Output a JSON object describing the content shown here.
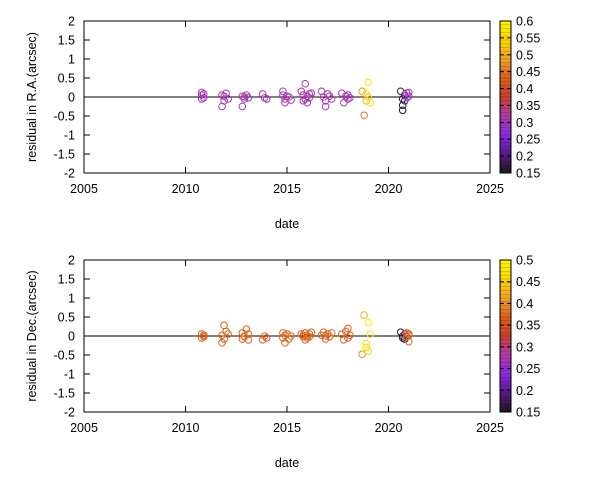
{
  "chart_data": [
    {
      "type": "scatter",
      "title": "",
      "xlabel": "date",
      "ylabel": "residual in R.A.(arcsec)",
      "xlim": [
        2005,
        2025
      ],
      "ylim": [
        -2,
        2
      ],
      "xticks": [
        "2005",
        "2010",
        "2015",
        "2020",
        "2025"
      ],
      "yticks": [
        "2",
        "1.5",
        "1",
        "0.5",
        "0",
        "-0.5",
        "-1",
        "-1.5",
        "-2"
      ],
      "grid": false,
      "marker": "open-circle",
      "zero_line": true,
      "colorbar": {
        "min": 0.15,
        "max": 0.6,
        "ticks": [
          "0.6",
          "0.55",
          "0.5",
          "0.45",
          "0.4",
          "0.35",
          "0.3",
          "0.25",
          "0.2",
          "0.15"
        ],
        "colormap": [
          "#1a1a1a",
          "#5a1a8a",
          "#8a2be2",
          "#b03aa8",
          "#c8402f",
          "#e0601a",
          "#f2a22a",
          "#ffd800",
          "#fff200"
        ]
      },
      "points": [
        {
          "x": 2010.8,
          "y": 0.05,
          "c": 0.31
        },
        {
          "x": 2010.8,
          "y": 0.12,
          "c": 0.31
        },
        {
          "x": 2010.9,
          "y": -0.02,
          "c": 0.31
        },
        {
          "x": 2010.8,
          "y": -0.05,
          "c": 0.3
        },
        {
          "x": 2010.9,
          "y": 0.08,
          "c": 0.31
        },
        {
          "x": 2011.8,
          "y": -0.25,
          "c": 0.31
        },
        {
          "x": 2011.8,
          "y": 0.05,
          "c": 0.31
        },
        {
          "x": 2011.9,
          "y": -0.1,
          "c": 0.31
        },
        {
          "x": 2012.0,
          "y": 0.1,
          "c": 0.32
        },
        {
          "x": 2011.9,
          "y": 0.02,
          "c": 0.3
        },
        {
          "x": 2012.1,
          "y": -0.05,
          "c": 0.31
        },
        {
          "x": 2012.8,
          "y": -0.25,
          "c": 0.31
        },
        {
          "x": 2012.8,
          "y": 0.02,
          "c": 0.31
        },
        {
          "x": 2012.9,
          "y": -0.05,
          "c": 0.31
        },
        {
          "x": 2013.0,
          "y": 0.05,
          "c": 0.31
        },
        {
          "x": 2013.1,
          "y": -0.02,
          "c": 0.3
        },
        {
          "x": 2012.9,
          "y": 0.0,
          "c": 0.32
        },
        {
          "x": 2013.8,
          "y": 0.08,
          "c": 0.31
        },
        {
          "x": 2013.9,
          "y": -0.02,
          "c": 0.31
        },
        {
          "x": 2014.0,
          "y": -0.05,
          "c": 0.3
        },
        {
          "x": 2014.8,
          "y": 0.15,
          "c": 0.31
        },
        {
          "x": 2014.8,
          "y": 0.05,
          "c": 0.31
        },
        {
          "x": 2014.9,
          "y": -0.05,
          "c": 0.31
        },
        {
          "x": 2014.9,
          "y": -0.15,
          "c": 0.31
        },
        {
          "x": 2015.0,
          "y": 0.02,
          "c": 0.3
        },
        {
          "x": 2015.1,
          "y": 0.0,
          "c": 0.31
        },
        {
          "x": 2015.2,
          "y": -0.08,
          "c": 0.32
        },
        {
          "x": 2015.7,
          "y": 0.15,
          "c": 0.31
        },
        {
          "x": 2015.8,
          "y": 0.05,
          "c": 0.31
        },
        {
          "x": 2015.8,
          "y": -0.1,
          "c": 0.31
        },
        {
          "x": 2015.9,
          "y": 0.35,
          "c": 0.31
        },
        {
          "x": 2015.9,
          "y": -0.05,
          "c": 0.3
        },
        {
          "x": 2016.0,
          "y": 0.02,
          "c": 0.31
        },
        {
          "x": 2016.0,
          "y": -0.15,
          "c": 0.31
        },
        {
          "x": 2016.1,
          "y": 0.08,
          "c": 0.32
        },
        {
          "x": 2016.1,
          "y": -0.02,
          "c": 0.31
        },
        {
          "x": 2016.2,
          "y": 0.1,
          "c": 0.31
        },
        {
          "x": 2016.7,
          "y": 0.15,
          "c": 0.31
        },
        {
          "x": 2016.8,
          "y": 0.0,
          "c": 0.31
        },
        {
          "x": 2016.9,
          "y": -0.1,
          "c": 0.31
        },
        {
          "x": 2016.9,
          "y": -0.25,
          "c": 0.31
        },
        {
          "x": 2017.0,
          "y": 0.08,
          "c": 0.3
        },
        {
          "x": 2017.1,
          "y": 0.02,
          "c": 0.31
        },
        {
          "x": 2017.2,
          "y": -0.05,
          "c": 0.32
        },
        {
          "x": 2017.7,
          "y": 0.1,
          "c": 0.31
        },
        {
          "x": 2017.8,
          "y": -0.15,
          "c": 0.31
        },
        {
          "x": 2017.9,
          "y": 0.02,
          "c": 0.31
        },
        {
          "x": 2018.0,
          "y": 0.05,
          "c": 0.3
        },
        {
          "x": 2018.0,
          "y": -0.05,
          "c": 0.32
        },
        {
          "x": 2018.1,
          "y": -0.02,
          "c": 0.31
        },
        {
          "x": 2018.7,
          "y": 0.15,
          "c": 0.48
        },
        {
          "x": 2018.8,
          "y": -0.48,
          "c": 0.45
        },
        {
          "x": 2018.9,
          "y": 0.08,
          "c": 0.55
        },
        {
          "x": 2018.9,
          "y": -0.1,
          "c": 0.5
        },
        {
          "x": 2019.0,
          "y": 0.38,
          "c": 0.58
        },
        {
          "x": 2019.0,
          "y": 0.0,
          "c": 0.52
        },
        {
          "x": 2019.1,
          "y": -0.15,
          "c": 0.57
        },
        {
          "x": 2020.6,
          "y": 0.15,
          "c": 0.18
        },
        {
          "x": 2020.7,
          "y": -0.05,
          "c": 0.16
        },
        {
          "x": 2020.7,
          "y": -0.22,
          "c": 0.16
        },
        {
          "x": 2020.7,
          "y": -0.35,
          "c": 0.15
        },
        {
          "x": 2020.8,
          "y": 0.05,
          "c": 0.2
        },
        {
          "x": 2020.8,
          "y": -0.1,
          "c": 0.18
        },
        {
          "x": 2020.9,
          "y": 0.1,
          "c": 0.3
        },
        {
          "x": 2020.9,
          "y": -0.02,
          "c": 0.31
        },
        {
          "x": 2021.0,
          "y": 0.12,
          "c": 0.31
        },
        {
          "x": 2021.0,
          "y": 0.02,
          "c": 0.3
        }
      ]
    },
    {
      "type": "scatter",
      "title": "",
      "xlabel": "date",
      "ylabel": "residual in Dec.(arcsec)",
      "xlim": [
        2005,
        2025
      ],
      "ylim": [
        -2,
        2
      ],
      "xticks": [
        "2005",
        "2010",
        "2015",
        "2020",
        "2025"
      ],
      "yticks": [
        "2",
        "1.5",
        "1",
        "0.5",
        "0",
        "-0.5",
        "-1",
        "-1.5",
        "-2"
      ],
      "grid": false,
      "marker": "open-circle",
      "zero_line": true,
      "colorbar": {
        "min": 0.15,
        "max": 0.5,
        "ticks": [
          "0.5",
          "0.45",
          "0.4",
          "0.35",
          "0.3",
          "0.25",
          "0.2",
          "0.15"
        ],
        "colormap": [
          "#1a1a1a",
          "#5a1a8a",
          "#8a2be2",
          "#b03aa8",
          "#c8402f",
          "#e0601a",
          "#f2a22a",
          "#ffd800",
          "#fff200"
        ]
      },
      "points": [
        {
          "x": 2010.8,
          "y": 0.05,
          "c": 0.37
        },
        {
          "x": 2010.8,
          "y": -0.05,
          "c": 0.37
        },
        {
          "x": 2010.9,
          "y": 0.02,
          "c": 0.36
        },
        {
          "x": 2010.9,
          "y": -0.02,
          "c": 0.37
        },
        {
          "x": 2011.8,
          "y": -0.18,
          "c": 0.37
        },
        {
          "x": 2011.8,
          "y": 0.02,
          "c": 0.37
        },
        {
          "x": 2011.9,
          "y": 0.28,
          "c": 0.37
        },
        {
          "x": 2011.9,
          "y": -0.08,
          "c": 0.36
        },
        {
          "x": 2012.0,
          "y": 0.12,
          "c": 0.37
        },
        {
          "x": 2012.1,
          "y": 0.05,
          "c": 0.38
        },
        {
          "x": 2012.8,
          "y": -0.08,
          "c": 0.37
        },
        {
          "x": 2012.8,
          "y": 0.08,
          "c": 0.37
        },
        {
          "x": 2012.9,
          "y": -0.02,
          "c": 0.37
        },
        {
          "x": 2013.0,
          "y": 0.18,
          "c": 0.36
        },
        {
          "x": 2013.1,
          "y": 0.05,
          "c": 0.37
        },
        {
          "x": 2013.1,
          "y": -0.1,
          "c": 0.37
        },
        {
          "x": 2012.9,
          "y": 0.0,
          "c": 0.38
        },
        {
          "x": 2013.8,
          "y": -0.1,
          "c": 0.37
        },
        {
          "x": 2013.9,
          "y": 0.0,
          "c": 0.37
        },
        {
          "x": 2014.0,
          "y": -0.05,
          "c": 0.36
        },
        {
          "x": 2014.8,
          "y": 0.08,
          "c": 0.37
        },
        {
          "x": 2014.8,
          "y": -0.05,
          "c": 0.37
        },
        {
          "x": 2014.9,
          "y": 0.02,
          "c": 0.37
        },
        {
          "x": 2014.9,
          "y": -0.18,
          "c": 0.37
        },
        {
          "x": 2015.0,
          "y": 0.05,
          "c": 0.36
        },
        {
          "x": 2015.1,
          "y": -0.08,
          "c": 0.37
        },
        {
          "x": 2015.2,
          "y": 0.0,
          "c": 0.38
        },
        {
          "x": 2015.7,
          "y": 0.05,
          "c": 0.37
        },
        {
          "x": 2015.8,
          "y": -0.02,
          "c": 0.37
        },
        {
          "x": 2015.8,
          "y": 0.02,
          "c": 0.37
        },
        {
          "x": 2015.9,
          "y": -0.1,
          "c": 0.37
        },
        {
          "x": 2015.9,
          "y": 0.08,
          "c": 0.36
        },
        {
          "x": 2016.0,
          "y": 0.0,
          "c": 0.37
        },
        {
          "x": 2016.0,
          "y": -0.05,
          "c": 0.37
        },
        {
          "x": 2016.1,
          "y": 0.05,
          "c": 0.38
        },
        {
          "x": 2016.1,
          "y": -0.02,
          "c": 0.37
        },
        {
          "x": 2016.2,
          "y": 0.1,
          "c": 0.37
        },
        {
          "x": 2016.7,
          "y": 0.02,
          "c": 0.37
        },
        {
          "x": 2016.8,
          "y": 0.1,
          "c": 0.37
        },
        {
          "x": 2016.9,
          "y": -0.08,
          "c": 0.37
        },
        {
          "x": 2016.9,
          "y": 0.0,
          "c": 0.37
        },
        {
          "x": 2017.0,
          "y": 0.05,
          "c": 0.36
        },
        {
          "x": 2017.1,
          "y": -0.02,
          "c": 0.37
        },
        {
          "x": 2017.2,
          "y": 0.08,
          "c": 0.38
        },
        {
          "x": 2017.7,
          "y": 0.05,
          "c": 0.37
        },
        {
          "x": 2017.8,
          "y": -0.1,
          "c": 0.37
        },
        {
          "x": 2017.9,
          "y": 0.12,
          "c": 0.37
        },
        {
          "x": 2018.0,
          "y": 0.2,
          "c": 0.37
        },
        {
          "x": 2018.0,
          "y": -0.05,
          "c": 0.36
        },
        {
          "x": 2018.1,
          "y": 0.02,
          "c": 0.37
        },
        {
          "x": 2018.7,
          "y": -0.48,
          "c": 0.4
        },
        {
          "x": 2018.8,
          "y": 0.55,
          "c": 0.42
        },
        {
          "x": 2018.9,
          "y": -0.3,
          "c": 0.45
        },
        {
          "x": 2018.9,
          "y": -0.2,
          "c": 0.48
        },
        {
          "x": 2019.0,
          "y": 0.35,
          "c": 0.5
        },
        {
          "x": 2019.0,
          "y": -0.4,
          "c": 0.47
        },
        {
          "x": 2019.1,
          "y": 0.05,
          "c": 0.49
        },
        {
          "x": 2020.6,
          "y": 0.1,
          "c": 0.17
        },
        {
          "x": 2020.7,
          "y": 0.0,
          "c": 0.16
        },
        {
          "x": 2020.7,
          "y": -0.05,
          "c": 0.16
        },
        {
          "x": 2020.8,
          "y": -0.08,
          "c": 0.15
        },
        {
          "x": 2020.8,
          "y": 0.05,
          "c": 0.2
        },
        {
          "x": 2020.9,
          "y": 0.08,
          "c": 0.37
        },
        {
          "x": 2020.9,
          "y": -0.02,
          "c": 0.37
        },
        {
          "x": 2021.0,
          "y": 0.05,
          "c": 0.37
        },
        {
          "x": 2021.0,
          "y": -0.15,
          "c": 0.37
        },
        {
          "x": 2021.0,
          "y": 0.02,
          "c": 0.36
        }
      ]
    }
  ]
}
